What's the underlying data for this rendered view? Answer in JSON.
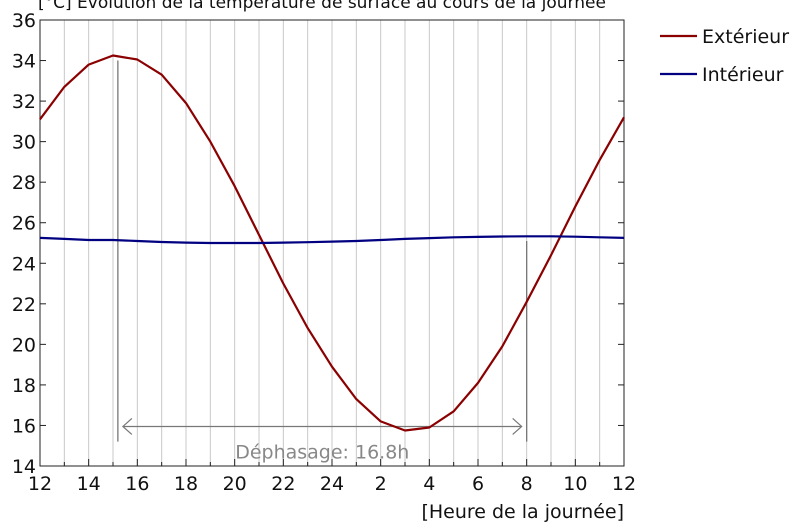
{
  "chart_data": {
    "type": "line",
    "title": "[°C] Évolution de la température de surface au cours de la journée",
    "xlabel": "[Heure de la journée]",
    "ylabel": "",
    "x": [
      0,
      1,
      2,
      3,
      4,
      5,
      6,
      7,
      8,
      9,
      10,
      11,
      12,
      13,
      14,
      15,
      16,
      17,
      18,
      19,
      20,
      21,
      22,
      23,
      24
    ],
    "x_ticks": [
      "12",
      "14",
      "16",
      "18",
      "20",
      "22",
      "24",
      "2",
      "4",
      "6",
      "8",
      "10",
      "12"
    ],
    "ylim": [
      14,
      36
    ],
    "y_ticks": [
      "14",
      "16",
      "18",
      "20",
      "22",
      "24",
      "26",
      "28",
      "30",
      "32",
      "34",
      "36"
    ],
    "grid": "vertical",
    "legend_position": "top-right",
    "series": [
      {
        "name": "Extérieur",
        "color": "#8b0000",
        "values": [
          31.1,
          32.7,
          33.8,
          34.25,
          34.05,
          33.3,
          31.9,
          30.0,
          27.8,
          25.4,
          23.0,
          20.8,
          18.9,
          17.3,
          16.2,
          15.75,
          15.9,
          16.7,
          18.1,
          19.9,
          22.1,
          24.4,
          26.8,
          29.1,
          31.2
        ]
      },
      {
        "name": "Intérieur",
        "color": "#000080",
        "values": [
          25.25,
          25.2,
          25.15,
          25.15,
          25.1,
          25.05,
          25.02,
          25.0,
          25.0,
          25.0,
          25.02,
          25.04,
          25.07,
          25.1,
          25.15,
          25.2,
          25.24,
          25.28,
          25.3,
          25.32,
          25.33,
          25.33,
          25.31,
          25.28,
          25.25
        ]
      }
    ],
    "annotation": {
      "label": "Déphasage: 16.8h",
      "x_start": 3.2,
      "x_end": 20.0,
      "y_arrow": 15.95,
      "marker_top_start": 34.0,
      "marker_top_end": 25.1,
      "marker_bottom": 15.2
    }
  }
}
